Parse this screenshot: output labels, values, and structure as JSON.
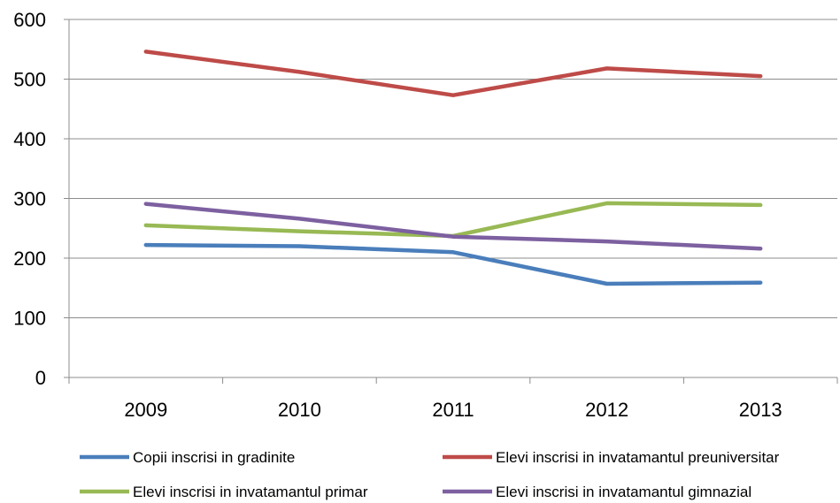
{
  "chart_data": {
    "type": "line",
    "title": "",
    "xlabel": "",
    "ylabel": "",
    "categories": [
      "2009",
      "2010",
      "2011",
      "2012",
      "2013"
    ],
    "ylim": [
      0,
      600
    ],
    "yticks": [
      0,
      100,
      200,
      300,
      400,
      500,
      600
    ],
    "grid": "horizontal",
    "legend_position": "bottom",
    "series": [
      {
        "name": "Copii inscrisi in gradinite",
        "color": "#4a7ebb",
        "values": [
          222,
          220,
          210,
          157,
          159
        ]
      },
      {
        "name": "Elevi inscrisi in invatamantul preuniversitar",
        "color": "#be4b48",
        "values": [
          546,
          512,
          473,
          518,
          505
        ]
      },
      {
        "name": "Elevi inscrisi in invatamantul primar",
        "color": "#98b954",
        "values": [
          255,
          245,
          237,
          292,
          289
        ]
      },
      {
        "name": "Elevi inscrisi in invatamantul  gimnazial",
        "color": "#7d60a0",
        "values": [
          291,
          266,
          236,
          228,
          216
        ]
      }
    ]
  }
}
